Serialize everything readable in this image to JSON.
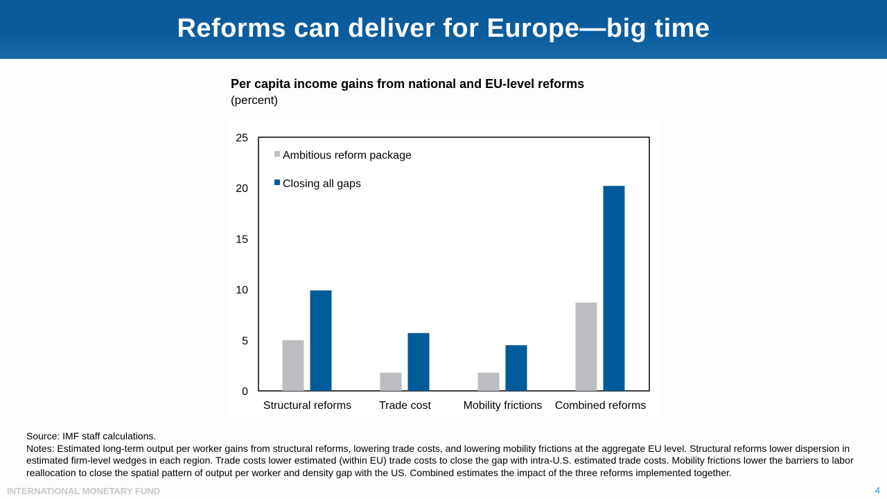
{
  "header": {
    "title": "Reforms can deliver for Europe—big time"
  },
  "chart_data": {
    "type": "bar",
    "title": "Per capita income gains from national and EU-level reforms",
    "subtitle": "(percent)",
    "categories": [
      "Structural reforms",
      "Trade cost",
      "Mobility frictions",
      "Combined reforms"
    ],
    "series": [
      {
        "name": "Ambitious reform package",
        "color": "#bcbdc0",
        "values": [
          5.0,
          1.8,
          1.8,
          8.7
        ]
      },
      {
        "name": "Closing all gaps",
        "color": "#005b9a",
        "values": [
          9.9,
          5.7,
          4.5,
          20.2
        ]
      }
    ],
    "ylim": [
      0,
      25
    ],
    "yticks": [
      "0",
      "5",
      "10",
      "15",
      "20",
      "25"
    ],
    "grid": false,
    "legend": "top-left"
  },
  "notes": {
    "source": "Source: IMF staff calculations.",
    "text": "Notes: Estimated long-term output per worker gains from structural reforms, lowering trade costs, and lowering mobility frictions at the aggregate EU level. Structural reforms lower dispersion in estimated firm-level wedges in each region. Trade costs lower estimated (within EU) trade costs to close the gap with intra-U.S. estimated trade costs. Mobility frictions lower the barriers to labor reallocation to close the spatial pattern of output per worker and density gap with the US. Combined estimates the impact of the three reforms implemented together."
  },
  "footer": {
    "org": "INTERNATIONAL MONETARY FUND",
    "page": "4"
  }
}
